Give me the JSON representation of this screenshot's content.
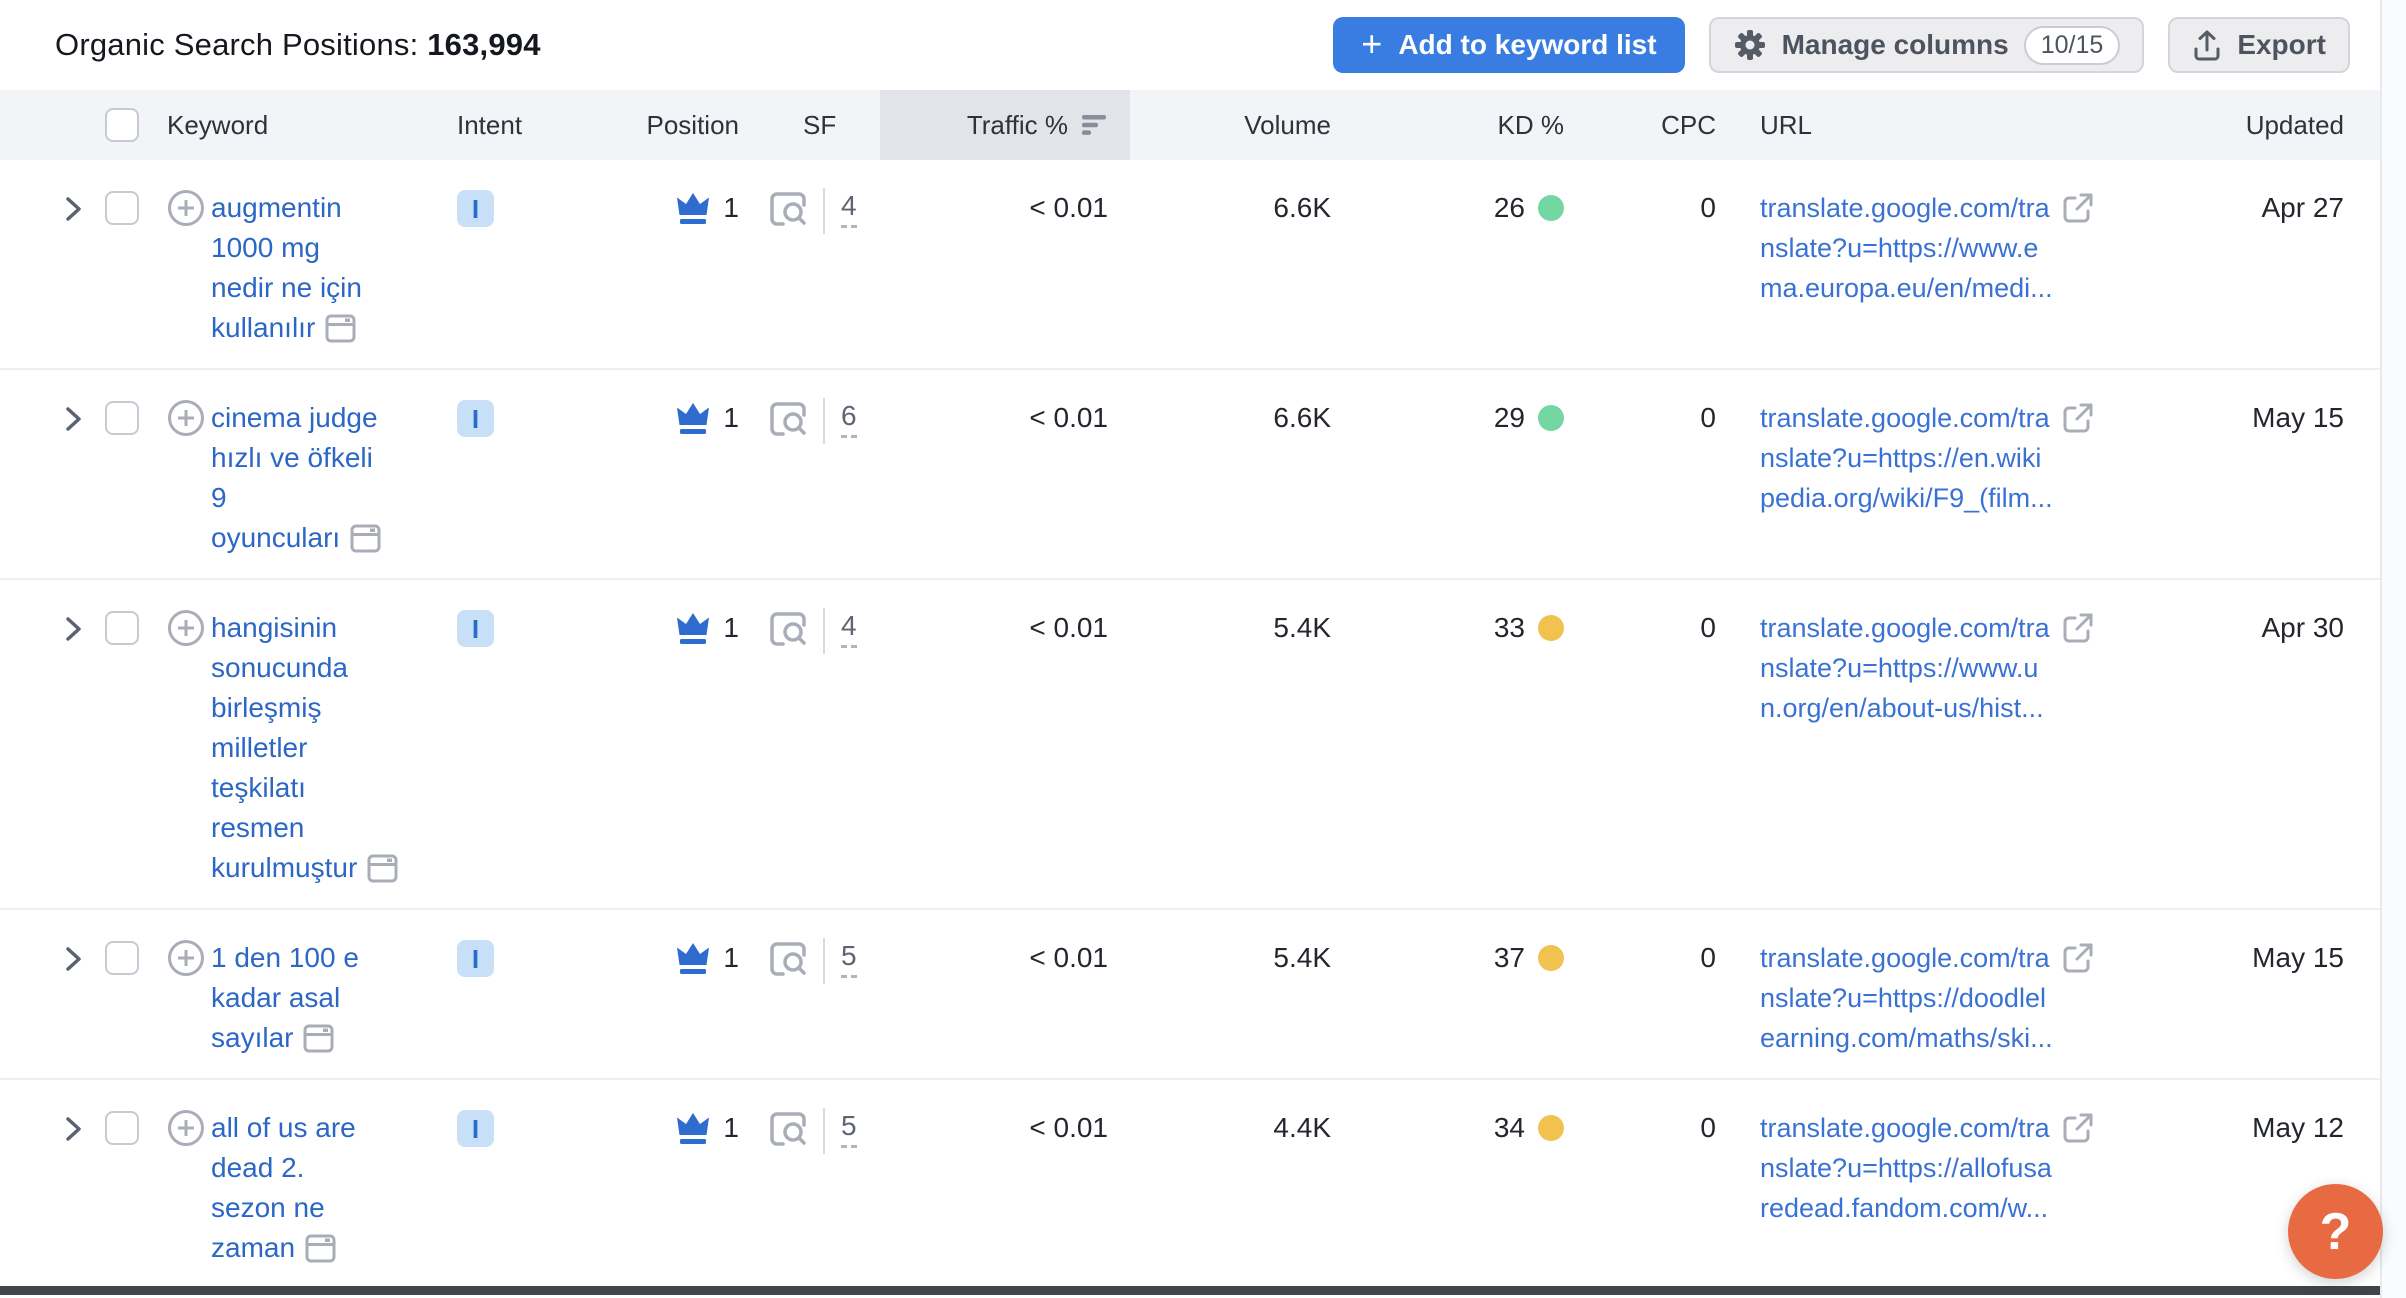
{
  "header": {
    "title_label": "Organic Search Positions:",
    "title_count": "163,994",
    "add_button_label": "Add to keyword list",
    "add_button_plus": "+",
    "manage_columns_label": "Manage columns",
    "columns_badge": "10/15",
    "export_label": "Export"
  },
  "table": {
    "columns": {
      "keyword": "Keyword",
      "intent": "Intent",
      "position": "Position",
      "sf": "SF",
      "traffic": "Traffic %",
      "volume": "Volume",
      "kd": "KD %",
      "cpc": "CPC",
      "url": "URL",
      "updated": "Updated"
    },
    "sorted_column": "Traffic %",
    "rows": [
      {
        "keyword": "augmentin 1000 mg nedir ne için kullanılır",
        "keyword_lines": [
          "augmentin",
          "1000 mg",
          "nedir ne için",
          "kullanılır"
        ],
        "intent": "I",
        "position": "1",
        "sf_count": "4",
        "traffic": "< 0.01",
        "volume": "6.6K",
        "kd": "26",
        "kd_level": "green",
        "cpc": "0",
        "url": "translate.google.com/translate?u=https://www.ema.europa.eu/en/medi...",
        "url_lines": [
          "translate.google.com/tra",
          "nslate?u=https://www.e",
          "ma.europa.eu/en/medi..."
        ],
        "updated": "Apr 27"
      },
      {
        "keyword": "cinema judge hızlı ve öfkeli 9 oyuncuları",
        "keyword_lines": [
          "cinema judge",
          "hızlı ve öfkeli",
          "9",
          "oyuncuları"
        ],
        "intent": "I",
        "position": "1",
        "sf_count": "6",
        "traffic": "< 0.01",
        "volume": "6.6K",
        "kd": "29",
        "kd_level": "green",
        "cpc": "0",
        "url": "translate.google.com/translate?u=https://en.wikipedia.org/wiki/F9_(film...",
        "url_lines": [
          "translate.google.com/tra",
          "nslate?u=https://en.wiki",
          "pedia.org/wiki/F9_(film..."
        ],
        "updated": "May 15"
      },
      {
        "keyword": "hangisinin sonucunda birleşmiş milletler teşkilatı resmen kurulmuştur",
        "keyword_lines": [
          "hangisinin",
          "sonucunda",
          "birleşmiş",
          "milletler",
          "teşkilatı",
          "resmen",
          "kurulmuştur"
        ],
        "intent": "I",
        "position": "1",
        "sf_count": "4",
        "traffic": "< 0.01",
        "volume": "5.4K",
        "kd": "33",
        "kd_level": "yellow",
        "cpc": "0",
        "url": "translate.google.com/translate?u=https://www.un.org/en/about-us/hist...",
        "url_lines": [
          "translate.google.com/tra",
          "nslate?u=https://www.u",
          "n.org/en/about-us/hist..."
        ],
        "updated": "Apr 30"
      },
      {
        "keyword": "1 den 100 e kadar asal sayılar",
        "keyword_lines": [
          "1 den 100 e",
          "kadar asal",
          "sayılar"
        ],
        "intent": "I",
        "position": "1",
        "sf_count": "5",
        "traffic": "< 0.01",
        "volume": "5.4K",
        "kd": "37",
        "kd_level": "yellow",
        "cpc": "0",
        "url": "translate.google.com/translate?u=https://doodlelearning.com/maths/ski...",
        "url_lines": [
          "translate.google.com/tra",
          "nslate?u=https://doodlel",
          "earning.com/maths/ski..."
        ],
        "updated": "May 15"
      },
      {
        "keyword": "all of us are dead 2. sezon ne zaman",
        "keyword_lines": [
          "all of us are",
          "dead 2.",
          "sezon ne",
          "zaman"
        ],
        "intent": "I",
        "position": "1",
        "sf_count": "5",
        "traffic": "< 0.01",
        "volume": "4.4K",
        "kd": "34",
        "kd_level": "yellow",
        "cpc": "0",
        "url": "translate.google.com/translate?u=https://allofusaredead.fandom.com/w...",
        "url_lines": [
          "translate.google.com/tra",
          "nslate?u=https://allofusa",
          "redead.fandom.com/w..."
        ],
        "updated": "May 12"
      }
    ]
  },
  "colors": {
    "primary_button": "#3a7de2",
    "keyword_link": "#2c67c5",
    "url_link": "#3a72d4",
    "intent_badge_bg": "#c7e0f8",
    "intent_badge_fg": "#2a6dc9",
    "crown": "#2e6ccf",
    "sorted_header_bg": "#e2e4e9",
    "help_button": "#e86a42",
    "kd": {
      "green": "#74d7a1",
      "yellow": "#f1c250"
    }
  },
  "help_button_label": "?"
}
